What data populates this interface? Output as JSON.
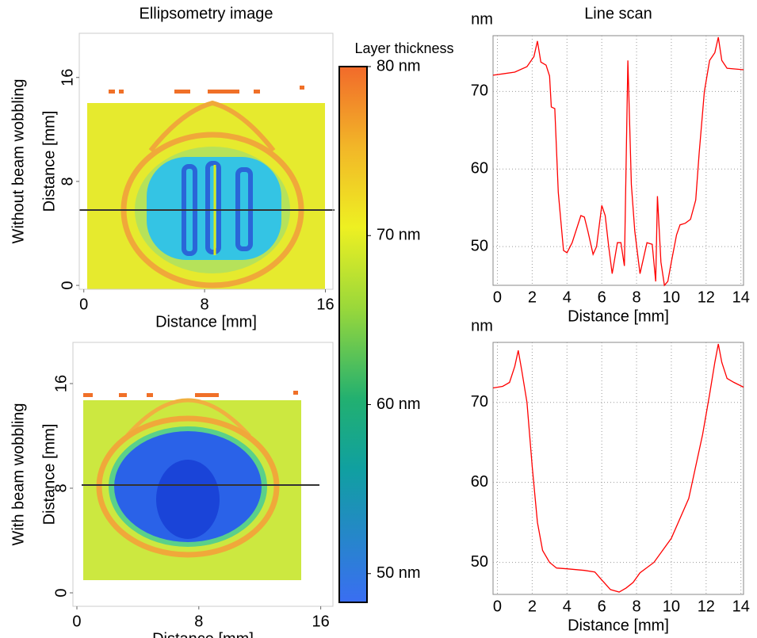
{
  "chart_data": [
    {
      "type": "image",
      "title": "Ellipsometry image",
      "annotation": "Without beam wobbling",
      "xlabel": "Distance [mm]",
      "ylabel": "Distance [mm]",
      "xlim": [
        -0.3,
        16.5
      ],
      "ylim": [
        -0.3,
        19.4
      ],
      "xticks": [
        0,
        8,
        16
      ],
      "yticks": [
        0,
        8,
        16
      ]
    },
    {
      "type": "image",
      "annotation": "With beam wobbling",
      "xlabel": "Distance [mm]",
      "ylabel": "Distance [mm]",
      "xlim": [
        -0.26,
        16.8
      ],
      "ylim": [
        -1.03,
        19.15
      ],
      "xticks": [
        0,
        8,
        16
      ],
      "yticks": [
        0,
        8,
        16
      ]
    },
    {
      "type": "colorbar",
      "title": "Layer thickness",
      "ylim": [
        48.3,
        80
      ],
      "yticks": [
        {
          "value": 80,
          "label": "80 nm"
        },
        {
          "value": 70,
          "label": "70 nm"
        },
        {
          "value": 60,
          "label": "60 nm"
        },
        {
          "value": 50,
          "label": "50 nm"
        }
      ]
    },
    {
      "type": "line",
      "title": "Line scan",
      "ylabel": "nm",
      "xlabel": "Distance [mm]",
      "color": "#ff0000",
      "grid": true,
      "xlim": [
        -0.25,
        14.15
      ],
      "ylim": [
        45,
        77.2
      ],
      "xticks": [
        0,
        2,
        4,
        6,
        8,
        10,
        12,
        14
      ],
      "yticks": [
        50,
        60,
        70
      ],
      "x": [
        -0.25,
        1,
        1.7,
        2.1,
        2.3,
        2.5,
        2.8,
        3,
        3.1,
        3.3,
        3.5,
        3.8,
        4,
        4.3,
        4.8,
        5,
        5.2,
        5.5,
        5.7,
        6,
        6.2,
        6.4,
        6.6,
        6.9,
        7.1,
        7.3,
        7.5,
        7.7,
        7.9,
        8.2,
        8.6,
        8.9,
        9.1,
        9.2,
        9.4,
        9.6,
        9.8,
        10,
        10.3,
        10.5,
        10.8,
        11.1,
        11.4,
        11.6,
        11.9,
        12.2,
        12.5,
        12.7,
        12.9,
        13.2,
        14.15
      ],
      "values": [
        72.1,
        72.5,
        73.2,
        74.5,
        76.5,
        73.8,
        73.4,
        72,
        68,
        67.8,
        57,
        49.5,
        49.2,
        50.5,
        54,
        53.8,
        52,
        49,
        50,
        55.3,
        54,
        50,
        46.5,
        50.5,
        50.5,
        47.5,
        74,
        58,
        52,
        46.5,
        50.5,
        50.3,
        45.5,
        56.5,
        48,
        45,
        45.5,
        48,
        51.5,
        52.8,
        53,
        53.5,
        56,
        62,
        70,
        74,
        75,
        77,
        74,
        73,
        72.8
      ]
    },
    {
      "type": "line",
      "ylabel": "nm",
      "xlabel": "Distance [mm]",
      "color": "#ff0000",
      "grid": true,
      "xlim": [
        -0.25,
        14.15
      ],
      "ylim": [
        46,
        77.5
      ],
      "xticks": [
        0,
        2,
        4,
        6,
        8,
        10,
        12,
        14
      ],
      "yticks": [
        50,
        60,
        70
      ],
      "x": [
        -0.25,
        0.3,
        0.7,
        1,
        1.2,
        1.4,
        1.7,
        2,
        2.3,
        2.6,
        3,
        3.4,
        4,
        5,
        5.6,
        6,
        6.5,
        7,
        7.4,
        7.8,
        8.2,
        9,
        10,
        11,
        11.8,
        12.2,
        12.5,
        12.7,
        12.9,
        13.2,
        13.6,
        14.15
      ],
      "values": [
        71.8,
        72,
        72.5,
        74.5,
        76.5,
        74,
        70,
        62,
        55,
        51.5,
        50,
        49.3,
        49.2,
        49,
        48.8,
        47.8,
        46.6,
        46.3,
        46.8,
        47.5,
        48.7,
        50,
        53,
        58,
        66,
        71,
        75,
        77.3,
        75,
        73,
        72.5,
        71.9
      ]
    }
  ]
}
